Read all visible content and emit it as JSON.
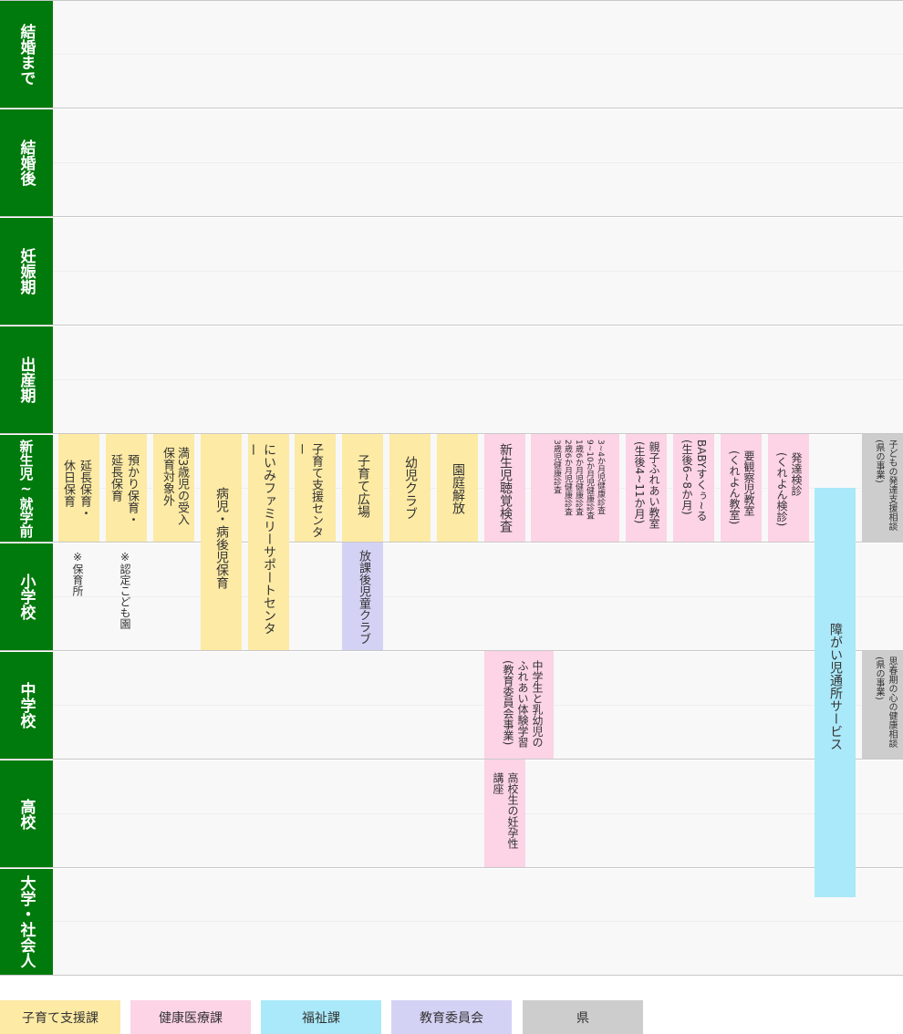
{
  "stages": [
    "結婚まで",
    "結婚後",
    "妊娠期",
    "出産期",
    "新生児~就学前",
    "小学校",
    "中学校",
    "高校",
    "大学・社会人"
  ],
  "services": {
    "s1": "延長保育・\n休日保育",
    "s2": "預かり保育・\n延長保育",
    "s3": "満3歳児の受入\n保育対象外",
    "s4": "病児・病後児保育",
    "s5": "にいみファミリーサポートセンター",
    "s6": "子育て支援センター",
    "s7": "子育て広場",
    "s8": "幼児クラブ",
    "s9": "園庭解放",
    "s10": "新生児聴覚検査",
    "s11": "3~4か月児健康診査\n9~10か月児健康診査\n1歳6か月児健康診査\n2歳6か月児健康診査\n3歳児健康診査",
    "s12": "親子ふれあい教室\n(生後4~11か月)",
    "s13": "BABYすくぅ~る\n(生後6~8か月)",
    "s14": "要観察児教室\n(くれよん教室)",
    "s15": "発達検診\n(くれよん検診)",
    "s16": "子どもの発達支援相談\n(県の事業)",
    "s17": "放課後児童クラブ",
    "s18": "中学生と乳幼児の\nふれあい体験学習\n(教育委員会事業)",
    "s19": "高校生の妊孕性\n講座",
    "s20": "思春期の心の健康相談\n(県の事業)",
    "s21": "障がい児通所サービス"
  },
  "notes": {
    "n1": "※保育所",
    "n2": "※認定こども園"
  },
  "legend": [
    {
      "label": "子育て支援課",
      "color": "#fdeaa4"
    },
    {
      "label": "健康医療課",
      "color": "#fdd3e6"
    },
    {
      "label": "福祉課",
      "color": "#aae9fa"
    },
    {
      "label": "教育委員会",
      "color": "#d4d2f4"
    },
    {
      "label": "県",
      "color": "#cdcdcd"
    }
  ],
  "colors": {
    "stage_bg": "#007a0c",
    "kosodate": "#fdeaa4",
    "kenko": "#fdd3e6",
    "fukushi": "#aae9fa",
    "kyoiku": "#d4d2f4",
    "ken": "#cdcdcd"
  }
}
